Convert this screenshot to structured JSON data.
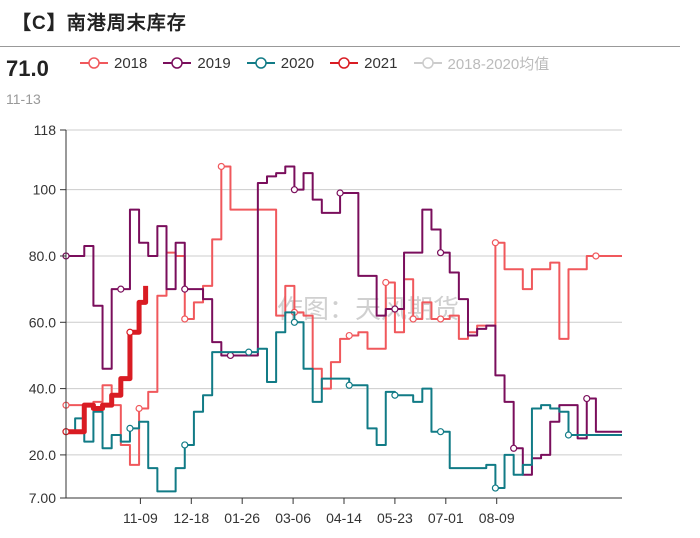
{
  "header": {
    "title": "【C】南港周末库存",
    "latest_value": "71.0",
    "latest_date": "11-13"
  },
  "watermark": "作图：天风期货",
  "colors": {
    "2018": "#f0585c",
    "2019": "#7a0e5c",
    "2020": "#117b86",
    "2021": "#d91c23",
    "avg": "#cccccc",
    "grid": "#cccccc",
    "axis": "#333333"
  },
  "chart_data": {
    "type": "line",
    "ylim": [
      7,
      118
    ],
    "yticks": [
      "7.00",
      "20.0",
      "40.0",
      "60.0",
      "80.0",
      "100",
      "118"
    ],
    "ytick_values": [
      7,
      20,
      40,
      60,
      80,
      100,
      118
    ],
    "x_range": [
      "09-13",
      "11-13"
    ],
    "xticks": [
      "11-09",
      "12-18",
      "01-26",
      "03-06",
      "04-14",
      "05-23",
      "07-01",
      "08-09"
    ],
    "xtick_dates": [
      "11-09",
      "12-18",
      "01-26",
      "03-06",
      "04-14",
      "05-23",
      "07-01",
      "08-09"
    ],
    "grid": true,
    "legend_position": "top",
    "series": [
      {
        "name": "2018",
        "x": [
          "09-13",
          "09-20",
          "09-27",
          "10-04",
          "10-11",
          "10-18",
          "10-25",
          "11-01",
          "11-08",
          "11-15",
          "11-22",
          "11-29",
          "12-06",
          "12-13",
          "12-20",
          "12-27",
          "01-03",
          "01-10",
          "01-17",
          "01-24",
          "01-31",
          "02-07",
          "02-14",
          "02-21",
          "02-28",
          "03-07",
          "03-14",
          "03-21",
          "03-28",
          "04-04",
          "04-11",
          "04-18",
          "04-25",
          "05-02",
          "05-09",
          "05-16",
          "05-23",
          "05-30",
          "06-06",
          "06-13",
          "06-20",
          "06-27",
          "07-04",
          "07-11",
          "07-18",
          "07-25",
          "08-01",
          "08-08",
          "08-15",
          "08-22",
          "08-29",
          "09-05",
          "09-12",
          "09-19",
          "09-26",
          "10-03",
          "10-10",
          "10-17",
          "10-24",
          "10-31",
          "11-07",
          "11-13"
        ],
        "values": [
          35,
          35,
          35,
          36,
          41,
          35,
          23,
          17,
          34,
          39,
          68,
          81,
          80,
          61,
          66,
          71,
          85,
          107,
          94,
          94,
          94,
          94,
          94,
          62,
          71,
          63,
          62,
          46,
          40,
          48,
          55,
          56,
          57,
          52,
          52,
          72,
          57,
          73,
          61,
          66,
          61,
          61,
          62,
          55,
          57,
          59,
          59,
          84,
          76,
          76,
          70,
          76,
          76,
          78,
          55,
          76,
          76,
          80,
          80,
          80,
          80,
          80
        ],
        "markers": [
          "09-13",
          "11-08",
          "12-13",
          "01-10",
          "03-07",
          "04-18",
          "05-16",
          "06-06",
          "06-27",
          "08-08",
          "10-24"
        ]
      },
      {
        "name": "2019",
        "x": [
          "09-13",
          "09-20",
          "09-27",
          "10-04",
          "10-11",
          "10-18",
          "10-25",
          "11-01",
          "11-08",
          "11-15",
          "11-22",
          "11-29",
          "12-06",
          "12-13",
          "12-20",
          "12-27",
          "01-03",
          "01-10",
          "01-17",
          "01-24",
          "01-31",
          "02-07",
          "02-14",
          "02-21",
          "02-28",
          "03-07",
          "03-14",
          "03-21",
          "03-28",
          "04-04",
          "04-11",
          "04-18",
          "04-25",
          "05-02",
          "05-09",
          "05-16",
          "05-23",
          "05-30",
          "06-06",
          "06-13",
          "06-20",
          "06-27",
          "07-04",
          "07-11",
          "07-18",
          "07-25",
          "08-01",
          "08-08",
          "08-15",
          "08-22",
          "08-29",
          "09-05",
          "09-12",
          "09-19",
          "09-26",
          "10-03",
          "10-10",
          "10-17",
          "10-24",
          "10-31",
          "11-07",
          "11-13"
        ],
        "values": [
          80,
          80,
          83,
          65,
          46,
          70,
          70,
          94,
          84,
          80,
          89,
          70,
          84,
          70,
          70,
          67,
          54,
          50,
          50,
          50,
          50,
          102,
          104,
          105,
          107,
          100,
          105,
          97,
          93,
          93,
          99,
          99,
          74,
          74,
          62,
          64,
          64,
          81,
          81,
          94,
          88,
          81,
          75,
          67,
          56,
          58,
          59,
          44,
          36,
          22,
          14,
          19,
          20,
          30,
          35,
          35,
          25,
          37,
          27,
          27,
          27,
          27
        ],
        "markers": [
          "09-13",
          "10-25",
          "12-13",
          "01-17",
          "03-07",
          "04-11",
          "05-23",
          "06-27",
          "08-22",
          "10-17"
        ]
      },
      {
        "name": "2020",
        "x": [
          "09-13",
          "09-20",
          "09-27",
          "10-04",
          "10-11",
          "10-18",
          "10-25",
          "11-01",
          "11-08",
          "11-15",
          "11-22",
          "11-29",
          "12-06",
          "12-13",
          "12-20",
          "12-27",
          "01-03",
          "01-10",
          "01-17",
          "01-24",
          "01-31",
          "02-07",
          "02-14",
          "02-21",
          "02-28",
          "03-07",
          "03-14",
          "03-21",
          "03-28",
          "04-04",
          "04-11",
          "04-18",
          "04-25",
          "05-02",
          "05-09",
          "05-16",
          "05-23",
          "05-30",
          "06-06",
          "06-13",
          "06-20",
          "06-27",
          "07-04",
          "07-11",
          "07-18",
          "07-25",
          "08-01",
          "08-08",
          "08-15",
          "08-22",
          "08-29",
          "09-05",
          "09-12",
          "09-19",
          "09-26",
          "10-03",
          "10-10",
          "10-17",
          "10-24",
          "10-31",
          "11-07",
          "11-13"
        ],
        "values": [
          27,
          31,
          24,
          33,
          22,
          26,
          24,
          28,
          30,
          16,
          9,
          9,
          16,
          23,
          33,
          38,
          51,
          51,
          51,
          51,
          51,
          52,
          42,
          57,
          63,
          60,
          46,
          36,
          43,
          43,
          43,
          41,
          41,
          28,
          23,
          39,
          38,
          38,
          36,
          40,
          27,
          27,
          16,
          16,
          16,
          16,
          17,
          10,
          20,
          14,
          17,
          34,
          35,
          34,
          33,
          26,
          26,
          26,
          26,
          26,
          26,
          26
        ],
        "markers": [
          "09-13",
          "11-01",
          "12-13",
          "01-31",
          "03-07",
          "04-18",
          "05-23",
          "06-27",
          "08-08",
          "10-03"
        ]
      },
      {
        "name": "2021",
        "x": [
          "09-13",
          "09-20",
          "09-27",
          "10-04",
          "10-11",
          "10-18",
          "10-25",
          "11-01",
          "11-08",
          "11-13"
        ],
        "values": [
          27,
          27,
          35,
          34,
          35,
          38,
          43,
          57,
          66,
          71
        ],
        "markers": [
          "09-13",
          "11-01"
        ]
      },
      {
        "name": "2018-2020均值",
        "x": [],
        "values": [],
        "markers": []
      }
    ]
  }
}
